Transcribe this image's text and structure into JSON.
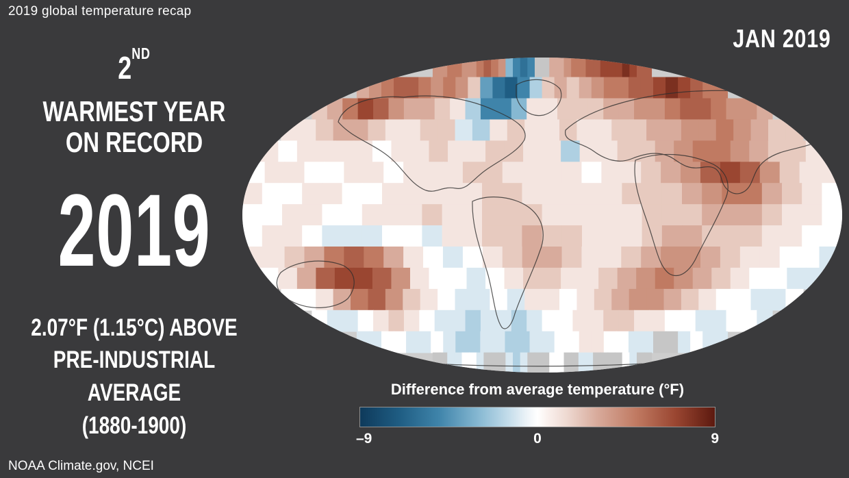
{
  "page": {
    "bg_color": "#3a3a3c",
    "recap_title": "2019 global temperature recap",
    "date_label": "JAN 2019",
    "credit": "NOAA Climate.gov, NCEI"
  },
  "stats": {
    "rank_number": "2",
    "rank_suffix": "ND",
    "rank_line1": "WARMEST YEAR",
    "rank_line2": "ON RECORD",
    "year": "2019",
    "anomaly_line1": "2.07°F (1.15°C) ABOVE",
    "anomaly_line2": "PRE-INDUSTRIAL AVERAGE",
    "anomaly_line3": "(1880-1900)"
  },
  "legend": {
    "title": "Difference from average temperature (°F)",
    "tick_min": "–9",
    "tick_mid": "0",
    "tick_max": "9"
  },
  "chart_data": {
    "type": "heatmap",
    "title": "Difference from average temperature (°F)",
    "subtitle": "JAN 2019 global temperature anomaly",
    "projection": "mollweide",
    "units": "°F",
    "value_range": [
      -9,
      9
    ],
    "no_data_color": "#c6c6c6",
    "color_stops": [
      {
        "value": -9,
        "color": "#0e3a5b"
      },
      {
        "value": -7,
        "color": "#1f5d83"
      },
      {
        "value": -5,
        "color": "#3f84aa"
      },
      {
        "value": -3,
        "color": "#86b8d2"
      },
      {
        "value": -1.5,
        "color": "#c3dcea"
      },
      {
        "value": -0.5,
        "color": "#eef4f8"
      },
      {
        "value": 0,
        "color": "#ffffff"
      },
      {
        "value": 0.5,
        "color": "#faf1ee"
      },
      {
        "value": 1.5,
        "color": "#eed9d1"
      },
      {
        "value": 3,
        "color": "#d8ab9c"
      },
      {
        "value": 5,
        "color": "#c07a62"
      },
      {
        "value": 7,
        "color": "#9a4631"
      },
      {
        "value": 9,
        "color": "#5c190f"
      }
    ],
    "grid": {
      "cols": 30,
      "rows": 15,
      "values": [
        [
          4,
          4,
          5,
          5,
          4,
          4,
          5,
          6,
          5,
          4,
          -3,
          -5,
          -6,
          -5,
          null,
          null,
          3,
          3,
          4,
          5,
          5,
          6,
          6,
          7,
          7,
          7,
          8,
          7,
          6,
          6
        ],
        [
          3,
          4,
          5,
          6,
          6,
          5,
          4,
          5,
          4,
          2,
          -4,
          -6,
          -7,
          -5,
          -2,
          2,
          3,
          2,
          3,
          4,
          5,
          5,
          6,
          6,
          7,
          8,
          7,
          6,
          5,
          5
        ],
        [
          2,
          3,
          5,
          7,
          6,
          4,
          3,
          3,
          2,
          1,
          -2,
          -5,
          -5,
          -3,
          1,
          1,
          2,
          2,
          2,
          3,
          3,
          4,
          4,
          5,
          6,
          6,
          5,
          4,
          4,
          3
        ],
        [
          1,
          1,
          2,
          3,
          3,
          2,
          1,
          1,
          2,
          2,
          -1,
          -2,
          1,
          2,
          1,
          1,
          2,
          1,
          1,
          2,
          2,
          3,
          3,
          4,
          4,
          5,
          4,
          3,
          2,
          2
        ],
        [
          1,
          0,
          1,
          1,
          1,
          1,
          0,
          1,
          1,
          2,
          1,
          1,
          2,
          2,
          1,
          1,
          -2,
          1,
          1,
          2,
          2,
          3,
          4,
          5,
          5,
          4,
          3,
          2,
          2,
          1
        ],
        [
          0,
          1,
          1,
          0,
          0,
          1,
          1,
          0,
          1,
          1,
          1,
          2,
          2,
          1,
          1,
          1,
          1,
          0,
          1,
          1,
          2,
          3,
          4,
          6,
          7,
          6,
          4,
          2,
          1,
          1
        ],
        [
          1,
          0,
          0,
          1,
          1,
          0,
          0,
          1,
          1,
          1,
          1,
          1,
          2,
          2,
          1,
          1,
          1,
          1,
          1,
          2,
          2,
          2,
          3,
          4,
          5,
          5,
          3,
          2,
          1,
          0
        ],
        [
          0,
          0,
          1,
          1,
          0,
          0,
          1,
          1,
          1,
          2,
          1,
          1,
          2,
          2,
          2,
          1,
          1,
          1,
          1,
          1,
          2,
          2,
          2,
          3,
          3,
          3,
          2,
          1,
          1,
          0
        ],
        [
          0,
          1,
          1,
          0,
          -1,
          -1,
          -1,
          0,
          0,
          -1,
          1,
          1,
          2,
          2,
          3,
          2,
          2,
          1,
          1,
          1,
          2,
          3,
          3,
          2,
          2,
          2,
          1,
          1,
          0,
          0
        ],
        [
          1,
          1,
          2,
          3,
          5,
          6,
          5,
          3,
          1,
          0,
          -1,
          0,
          1,
          2,
          3,
          3,
          2,
          1,
          1,
          2,
          3,
          4,
          4,
          3,
          2,
          1,
          1,
          0,
          0,
          -1
        ],
        [
          0,
          1,
          3,
          6,
          7,
          7,
          6,
          4,
          1,
          0,
          0,
          -1,
          0,
          1,
          2,
          2,
          1,
          1,
          2,
          3,
          4,
          5,
          4,
          3,
          2,
          1,
          0,
          0,
          -1,
          -1
        ],
        [
          0,
          0,
          1,
          3,
          5,
          6,
          4,
          2,
          1,
          0,
          -1,
          -1,
          0,
          -1,
          1,
          1,
          0,
          1,
          2,
          3,
          4,
          4,
          3,
          2,
          1,
          0,
          0,
          -1,
          -1,
          0
        ],
        [
          0,
          -1,
          -1,
          0,
          1,
          2,
          1,
          0,
          -1,
          -1,
          -2,
          -1,
          -1,
          -2,
          -1,
          0,
          0,
          1,
          1,
          2,
          2,
          1,
          1,
          0,
          0,
          -1,
          -1,
          0,
          0,
          -1
        ],
        [
          -1,
          -1,
          0,
          0,
          -1,
          -1,
          0,
          -1,
          -2,
          -2,
          -1,
          -1,
          -2,
          -2,
          -1,
          -1,
          0,
          0,
          1,
          1,
          0,
          0,
          -1,
          -1,
          null,
          null,
          -1,
          0,
          -1,
          -1
        ],
        [
          null,
          null,
          -1,
          -1,
          0,
          0,
          -1,
          null,
          null,
          null,
          -1,
          -2,
          -1,
          null,
          null,
          null,
          0,
          0,
          null,
          null,
          -1,
          -1,
          null,
          null,
          null,
          null,
          0,
          -1,
          null,
          null
        ]
      ]
    }
  }
}
